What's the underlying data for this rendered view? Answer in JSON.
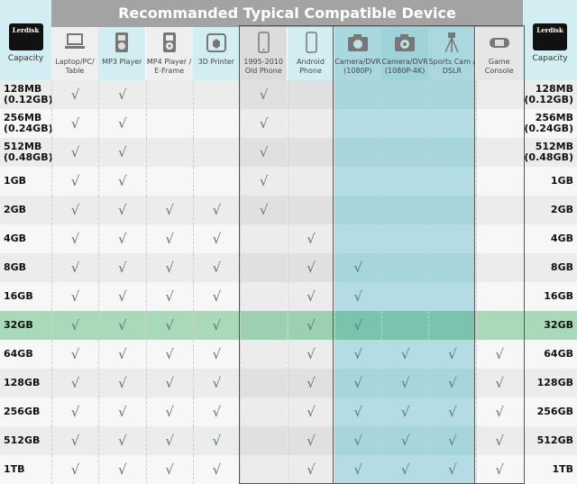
{
  "title": "Recommanded Typical Compatible Device",
  "brand": "Lerdisk",
  "capacity_label": "Capacity",
  "devices": [
    {
      "label": "Laptop/PC/ Table",
      "icon": "laptop-icon"
    },
    {
      "label": "MP3 Player",
      "icon": "mp3-player-icon"
    },
    {
      "label": "MP4 Player / E-Frame",
      "icon": "mp4-player-icon"
    },
    {
      "label": "3D Printer",
      "icon": "3d-printer-icon"
    },
    {
      "label": "1995-2010 Old Phone",
      "icon": "old-phone-icon"
    },
    {
      "label": "Android Phone",
      "icon": "android-phone-icon"
    },
    {
      "label": "Camera/DVR (1080P)",
      "icon": "camera-icon"
    },
    {
      "label": "Camera/DVR (1080P-4K)",
      "icon": "camera-4k-icon"
    },
    {
      "label": "Sports Cam / DSLR",
      "icon": "tripod-icon"
    },
    {
      "label": "Game Console",
      "icon": "game-console-icon"
    }
  ],
  "check_mark": "√",
  "rows": [
    {
      "cap": "128MB (0.12GB)",
      "checks": [
        1,
        1,
        0,
        0,
        1,
        0,
        0,
        0,
        0,
        0
      ]
    },
    {
      "cap": "256MB (0.24GB)",
      "checks": [
        1,
        1,
        0,
        0,
        1,
        0,
        0,
        0,
        0,
        0
      ]
    },
    {
      "cap": "512MB (0.48GB)",
      "checks": [
        1,
        1,
        0,
        0,
        1,
        0,
        0,
        0,
        0,
        0
      ]
    },
    {
      "cap": "1GB",
      "checks": [
        1,
        1,
        0,
        0,
        1,
        0,
        0,
        0,
        0,
        0
      ]
    },
    {
      "cap": "2GB",
      "checks": [
        1,
        1,
        1,
        1,
        1,
        0,
        0,
        0,
        0,
        0
      ]
    },
    {
      "cap": "4GB",
      "checks": [
        1,
        1,
        1,
        1,
        0,
        1,
        0,
        0,
        0,
        0
      ]
    },
    {
      "cap": "8GB",
      "checks": [
        1,
        1,
        1,
        1,
        0,
        1,
        1,
        0,
        0,
        0
      ]
    },
    {
      "cap": "16GB",
      "checks": [
        1,
        1,
        1,
        1,
        0,
        1,
        1,
        0,
        0,
        0
      ]
    },
    {
      "cap": "32GB",
      "checks": [
        1,
        1,
        1,
        1,
        0,
        1,
        1,
        0,
        0,
        0
      ],
      "highlight": true
    },
    {
      "cap": "64GB",
      "checks": [
        1,
        1,
        1,
        1,
        0,
        1,
        1,
        1,
        1,
        1
      ]
    },
    {
      "cap": "128GB",
      "checks": [
        1,
        1,
        1,
        1,
        0,
        1,
        1,
        1,
        1,
        1
      ]
    },
    {
      "cap": "256GB",
      "checks": [
        1,
        1,
        1,
        1,
        0,
        1,
        1,
        1,
        1,
        1
      ]
    },
    {
      "cap": "512GB",
      "checks": [
        1,
        1,
        1,
        1,
        0,
        1,
        1,
        1,
        1,
        1
      ]
    },
    {
      "cap": "1TB",
      "checks": [
        1,
        1,
        1,
        1,
        0,
        1,
        1,
        1,
        1,
        1
      ]
    }
  ],
  "colors": {
    "header_gray": "#a3a3a3",
    "capacity_blue": "#d3eef2",
    "camera_teal": "#a9d9df",
    "highlight_green": "#a8d9b8"
  }
}
